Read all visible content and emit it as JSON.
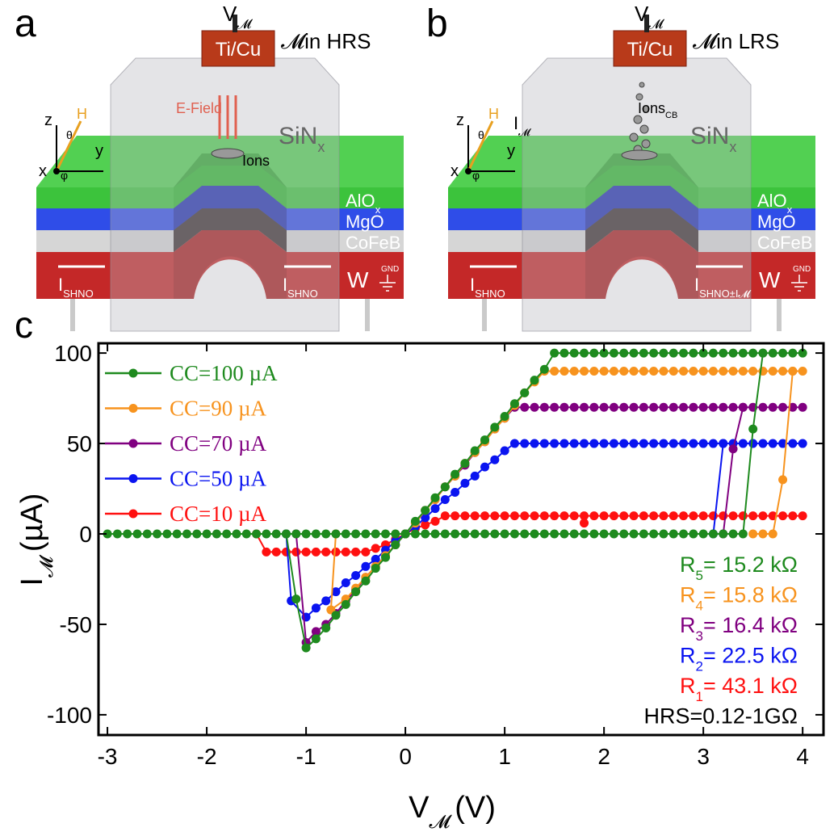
{
  "illustrations": [
    {
      "label": "a",
      "v": "V",
      "v_sub": "𝓜",
      "electrode": "Ti/Cu",
      "state": "𝓜in HRS",
      "field": "E-Field",
      "ions": "Ions",
      "sin": "SiN",
      "sin_sub": "x",
      "alo": "AlO",
      "alo_sub": "x",
      "mgo": "MgO",
      "cofeb": "CoFeB",
      "w": "W",
      "gnd": "GND",
      "i_left": "I",
      "i_left_sub": "SHNO",
      "i_right": "I",
      "i_right_sub": "SHNO",
      "z": "z",
      "y": "y",
      "x": "x",
      "h": "H",
      "theta": "θ",
      "phi": "φ"
    },
    {
      "label": "b",
      "v": "V",
      "v_sub": "𝓜",
      "electrode": "Ti/Cu",
      "state": "𝓜in LRS",
      "current": "I",
      "current_sub": "𝓜",
      "ions": "Ions",
      "ions_sub": "CB",
      "sin": "SiN",
      "sin_sub": "x",
      "alo": "AlO",
      "alo_sub": "x",
      "mgo": "MgO",
      "cofeb": "CoFeB",
      "w": "W",
      "gnd": "GND",
      "i_left": "I",
      "i_left_sub": "SHNO",
      "i_right": "I",
      "i_right_sub": "SHNO±I𝓜",
      "z": "z",
      "y": "y",
      "x": "x",
      "h": "H",
      "theta": "θ",
      "phi": "φ"
    }
  ],
  "chart_data": {
    "type": "line",
    "panel_label": "c",
    "x_label": {
      "main": "V",
      "sub": "𝓜",
      "unit": "(V)"
    },
    "y_label": {
      "main": "I",
      "sub": "𝓜",
      "unit": "(µA)"
    },
    "xlim": [
      -3.09,
      4.21
    ],
    "ylim": [
      -111.2,
      105.4
    ],
    "xticks": [
      -3,
      -2,
      -1,
      0,
      1,
      2,
      3,
      4
    ],
    "yticks": [
      -100,
      -50,
      0,
      50,
      100
    ],
    "legend": "upper left",
    "markers": true,
    "series": [
      {
        "name": "CC=100 µA",
        "color": "#1e8a1e",
        "x": [
          4,
          3.9,
          3.8,
          3.7,
          3.6,
          3.5,
          3.4,
          3.3,
          3.2,
          3.1,
          3,
          2.9,
          2.8,
          2.7,
          2.6,
          2.5,
          2.4,
          2.3,
          2.2,
          2.1,
          2,
          1.9,
          1.8,
          1.7,
          1.6,
          1.5,
          1.4,
          1.3,
          1.2,
          1.1,
          1,
          0.9,
          0.8,
          0.7,
          0.6,
          0.5,
          0.4,
          0.3,
          0.2,
          0.1,
          0,
          -0.1,
          -0.2,
          -0.3,
          -0.4,
          -0.5,
          -0.6,
          -0.7,
          -0.8,
          -0.9,
          -1,
          -1.1,
          -1.2,
          null,
          -3,
          -2.9,
          -2.8,
          -2.7,
          -2.6,
          -2.5,
          -2.4,
          -2.3,
          -2.2,
          -2.1,
          -2,
          -1.9,
          -1.8,
          -1.7,
          -1.6,
          -1.5,
          -1.4,
          -1.3,
          -1.2,
          -1.1,
          -1,
          -0.9,
          -0.8,
          -0.7,
          -0.6,
          -0.5,
          -0.4,
          -0.3,
          -0.2,
          -0.1,
          0,
          0.1,
          0.2,
          0.3,
          0.4,
          0.5,
          0.6,
          0.7,
          0.8,
          0.9,
          1,
          1.1,
          1.2,
          1.3,
          1.4,
          1.5,
          1.6,
          1.7,
          1.8,
          1.9,
          2,
          2.1,
          2.2,
          2.3,
          2.4,
          2.5,
          2.6,
          2.7,
          2.8,
          2.9,
          3,
          3.1,
          3.2,
          3.3,
          3.4,
          3.5,
          3.6
        ],
        "values": [
          100,
          100,
          100,
          100,
          100,
          100,
          100,
          100,
          100,
          100,
          100,
          100,
          100,
          100,
          100,
          100,
          100,
          100,
          100,
          100,
          100,
          100,
          100,
          100,
          100,
          100,
          91,
          85,
          78,
          72,
          65,
          59,
          52,
          46,
          39,
          33,
          26,
          20,
          13,
          7,
          0,
          -6,
          -13,
          -19,
          -26,
          -32,
          -39,
          -45,
          -52,
          -58,
          -63,
          -36,
          0,
          null,
          0,
          0,
          0,
          0,
          0,
          0,
          0,
          0,
          0,
          0,
          0,
          0,
          0,
          0,
          0,
          0,
          0,
          0,
          0,
          0,
          0,
          0,
          0,
          0,
          0,
          0,
          0,
          0,
          0,
          0,
          0,
          0,
          0,
          0,
          0,
          0,
          0,
          0,
          0,
          0,
          0,
          0,
          0,
          0,
          0,
          0,
          0,
          0,
          0,
          0,
          0,
          0,
          0,
          0,
          0,
          0,
          0,
          0,
          0,
          0,
          0,
          0,
          0,
          0,
          0,
          58,
          100
        ]
      },
      {
        "name": "CC=90 µA",
        "color": "#f7931e",
        "x": [
          4,
          3.9,
          3.8,
          3.7,
          3.6,
          3.5,
          3.4,
          3.3,
          3.2,
          3.1,
          3,
          2.9,
          2.8,
          2.7,
          2.6,
          2.5,
          2.4,
          2.3,
          2.2,
          2.1,
          2,
          1.9,
          1.8,
          1.7,
          1.6,
          1.5,
          1.4,
          1.3,
          1.2,
          1.1,
          1,
          0.9,
          0.8,
          0.7,
          0.6,
          0.5,
          0.4,
          0.3,
          0.2,
          0.1,
          0,
          -0.1,
          -0.2,
          -0.3,
          -0.4,
          -0.5,
          -0.6,
          -0.75,
          -0.7,
          null,
          3.5,
          3.6,
          3.7,
          3.8,
          3.9
        ],
        "values": [
          90,
          90,
          90,
          90,
          90,
          90,
          90,
          90,
          90,
          90,
          90,
          90,
          90,
          90,
          90,
          90,
          90,
          90,
          90,
          90,
          90,
          90,
          90,
          90,
          90,
          90,
          90,
          84,
          78,
          71,
          64,
          58,
          51,
          45,
          39,
          32,
          26,
          19,
          13,
          6,
          0,
          -6,
          -12,
          -18,
          -24,
          -30,
          -36,
          -42,
          0,
          null,
          0,
          0,
          0,
          30,
          90
        ]
      },
      {
        "name": "CC=70 µA",
        "color": "#800080",
        "x": [
          4,
          3.9,
          3.8,
          3.7,
          3.6,
          3.5,
          3.4,
          3.3,
          3.2,
          3.1,
          3,
          2.9,
          2.8,
          2.7,
          2.6,
          2.5,
          2.4,
          2.3,
          2.2,
          2.1,
          2,
          1.9,
          1.8,
          1.7,
          1.6,
          1.5,
          1.4,
          1.3,
          1.2,
          1.1,
          1,
          0.9,
          0.8,
          0.7,
          0.6,
          0.5,
          0.4,
          0.3,
          0.2,
          0.1,
          0,
          -0.1,
          -0.2,
          -0.3,
          -0.4,
          -0.5,
          -0.6,
          -0.7,
          -0.8,
          -0.9,
          -1,
          -1.1,
          null,
          3.2,
          3.3,
          3.4
        ],
        "values": [
          70,
          70,
          70,
          70,
          70,
          70,
          70,
          70,
          70,
          70,
          70,
          70,
          70,
          70,
          70,
          70,
          70,
          70,
          70,
          70,
          70,
          70,
          70,
          70,
          70,
          70,
          70,
          70,
          70,
          70,
          64,
          58,
          51,
          45,
          38,
          32,
          26,
          19,
          13,
          6,
          0,
          -6,
          -12,
          -18,
          -24,
          -31,
          -37,
          -44,
          -50,
          -54,
          -60,
          0,
          null,
          0,
          47,
          70
        ]
      },
      {
        "name": "CC=50 µA",
        "color": "#0a14f0",
        "x": [
          4,
          3.9,
          3.8,
          3.7,
          3.6,
          3.5,
          3.4,
          3.3,
          3.2,
          3.1,
          3,
          2.9,
          2.8,
          2.7,
          2.6,
          2.5,
          2.4,
          2.3,
          2.2,
          2.1,
          2,
          1.9,
          1.8,
          1.7,
          1.6,
          1.5,
          1.4,
          1.3,
          1.2,
          1.1,
          1,
          0.9,
          0.8,
          0.7,
          0.6,
          0.5,
          0.4,
          0.3,
          0.2,
          0.1,
          0,
          -0.1,
          -0.2,
          -0.3,
          -0.4,
          -0.5,
          -0.6,
          -0.7,
          -0.8,
          -0.9,
          -1,
          -1.15,
          -1.2,
          null,
          3.1,
          3.2
        ],
        "values": [
          50,
          50,
          50,
          50,
          50,
          50,
          50,
          50,
          50,
          50,
          50,
          50,
          50,
          50,
          50,
          50,
          50,
          50,
          50,
          50,
          50,
          50,
          50,
          50,
          50,
          50,
          50,
          50,
          50,
          50,
          46,
          41,
          37,
          32,
          28,
          23,
          19,
          14,
          9,
          4,
          0,
          -4,
          -9,
          -14,
          -18,
          -23,
          -27,
          -32,
          -37,
          -41,
          -46,
          -37,
          0,
          null,
          0,
          50
        ]
      },
      {
        "name": "CC=10 µA",
        "color": "#ff1010",
        "x": [
          4,
          3.9,
          3.8,
          3.7,
          3.6,
          3.5,
          3.4,
          3.3,
          3.2,
          3.1,
          3,
          2.9,
          2.8,
          2.7,
          2.6,
          2.5,
          2.4,
          2.3,
          2.2,
          2.1,
          2,
          1.9,
          1.8,
          1.7,
          1.6,
          1.5,
          1.4,
          1.3,
          1.2,
          1.1,
          1,
          0.9,
          0.8,
          0.7,
          0.6,
          0.5,
          0.4,
          0.3,
          0.2,
          0.1,
          0,
          -0.1,
          -0.2,
          -0.3,
          -0.4,
          -0.5,
          -0.6,
          -0.7,
          -0.8,
          -0.9,
          -1,
          -1.1,
          -1.2,
          -1.3,
          -1.4,
          -1.5,
          null,
          1.8
        ],
        "values": [
          10,
          10,
          10,
          10,
          10,
          10,
          10,
          10,
          10,
          10,
          10,
          10,
          10,
          10,
          10,
          10,
          10,
          10,
          10,
          10,
          10,
          10,
          10,
          10,
          10,
          10,
          10,
          10,
          10,
          10,
          10,
          10,
          10,
          10,
          10,
          10,
          10,
          7,
          5,
          3,
          0,
          -3,
          -6,
          -8,
          -10,
          -10,
          -10,
          -10,
          -10,
          -10,
          -10,
          -10,
          -10,
          -10,
          -10,
          0,
          null,
          6
        ]
      }
    ],
    "annotations": [
      {
        "symbol": "R",
        "sub": "5",
        "text": "= 15.2 kΩ",
        "color": "#1e8a1e"
      },
      {
        "symbol": "R",
        "sub": "4",
        "text": "= 15.8 kΩ",
        "color": "#f7931e"
      },
      {
        "symbol": "R",
        "sub": "3",
        "text": "= 16.4 kΩ",
        "color": "#800080"
      },
      {
        "symbol": "R",
        "sub": "2",
        "text": "= 22.5 kΩ",
        "color": "#0a14f0"
      },
      {
        "symbol": "R",
        "sub": "1",
        "text": "= 43.1 kΩ",
        "color": "#ff1010"
      },
      {
        "text": "HRS=0.12-1GΩ",
        "color": "#000000"
      }
    ]
  }
}
